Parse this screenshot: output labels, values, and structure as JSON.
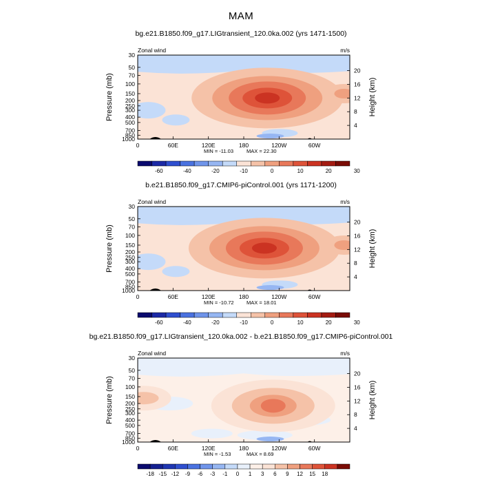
{
  "season": "MAM",
  "units": "m/s",
  "variable": "Zonal wind",
  "ylabel_left": "Pressure (mb)",
  "ylabel_right": "Height (km)",
  "pressure_ticks": [
    "30",
    "50",
    "70",
    "100",
    "150",
    "200",
    "250",
    "300",
    "400",
    "500",
    "700",
    "850",
    "1000"
  ],
  "height_ticks": [
    "20",
    "16",
    "12",
    "8",
    "4"
  ],
  "lon_ticks": [
    "0",
    "60E",
    "120E",
    "180",
    "120W",
    "60W"
  ],
  "chart_data": [
    {
      "type": "heatmap",
      "title": "bg.e21.B1850.f09_g17.LIGtransient_120.0ka.002 (yrs 1471-1500)",
      "subtitle": "Zonal wind",
      "units": "m/s",
      "xlabel": "",
      "ylabel": "Pressure (mb)",
      "ylabel_right": "Height (km)",
      "x_range": [
        "0",
        "360"
      ],
      "y_range_mb": [
        1000,
        30
      ],
      "min_text": "MIN = -11.03",
      "max_text": "MAX = 22.30",
      "levels": [
        "-60",
        "-40",
        "-20",
        "-10",
        "0",
        "10",
        "20",
        "30"
      ],
      "colors": [
        "#0a0a6e",
        "#1c2aa6",
        "#2f4fcf",
        "#4a72e0",
        "#6f94ea",
        "#96b6f2",
        "#c4daf9",
        "#fbe3d6",
        "#f5c2a8",
        "#efa07f",
        "#e8785a",
        "#de5339",
        "#cb3322",
        "#a41c12",
        "#7a0c06"
      ],
      "jet_max_lon": 220,
      "jet_max_mb": 180
    },
    {
      "type": "heatmap",
      "title": "b.e21.B1850.f09_g17.CMIP6-piControl.001 (yrs 1171-1200)",
      "subtitle": "Zonal wind",
      "units": "m/s",
      "xlabel": "",
      "ylabel": "Pressure (mb)",
      "ylabel_right": "Height (km)",
      "x_range": [
        "0",
        "360"
      ],
      "y_range_mb": [
        1000,
        30
      ],
      "min_text": "MIN = -10.72",
      "max_text": "MAX = 18.01",
      "levels": [
        "-60",
        "-40",
        "-20",
        "-10",
        "0",
        "10",
        "20",
        "30"
      ],
      "colors": [
        "#0a0a6e",
        "#1c2aa6",
        "#2f4fcf",
        "#4a72e0",
        "#6f94ea",
        "#96b6f2",
        "#c4daf9",
        "#fbe3d6",
        "#f5c2a8",
        "#efa07f",
        "#e8785a",
        "#de5339",
        "#cb3322",
        "#a41c12",
        "#7a0c06"
      ],
      "jet_max_lon": 215,
      "jet_max_mb": 170
    },
    {
      "type": "heatmap",
      "title": "bg.e21.B1850.f09_g17.LIGtransient_120.0ka.002 - b.e21.B1850.f09_g17.CMIP6-piControl.001",
      "subtitle": "Zonal wind",
      "units": "m/s",
      "xlabel": "",
      "ylabel": "Pressure (mb)",
      "ylabel_right": "Height (km)",
      "x_range": [
        "0",
        "360"
      ],
      "y_range_mb": [
        1000,
        30
      ],
      "min_text": "MIN = -1.53",
      "max_text": "MAX = 8.69",
      "levels": [
        "-18",
        "-15",
        "-12",
        "-9",
        "-6",
        "-3",
        "-1",
        "0",
        "1",
        "3",
        "6",
        "9",
        "12",
        "15",
        "18"
      ],
      "colors": [
        "#0a0a6e",
        "#142090",
        "#1f36b2",
        "#2f4fcf",
        "#4a72e0",
        "#6f94ea",
        "#96b6f2",
        "#c4daf9",
        "#e8f0fb",
        "#fdf0e8",
        "#fbe3d6",
        "#f5c2a8",
        "#efa07f",
        "#e8785a",
        "#de5339",
        "#cb3322",
        "#7a0c06"
      ],
      "jet_max_lon": 230,
      "jet_max_mb": 220
    }
  ]
}
